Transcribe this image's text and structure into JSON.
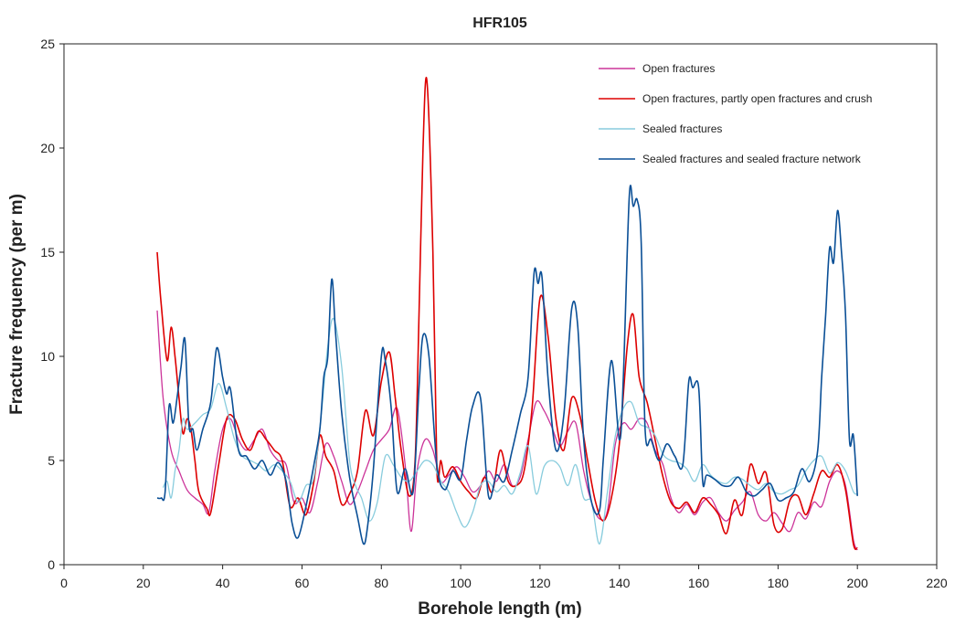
{
  "chart_data": {
    "type": "line",
    "title": "HFR105",
    "xlabel": "Borehole length (m)",
    "ylabel": "Fracture frequency (per m)",
    "xlim": [
      0,
      220
    ],
    "ylim": [
      0,
      25
    ],
    "xticks": [
      0,
      20,
      40,
      60,
      80,
      100,
      120,
      140,
      160,
      180,
      200,
      220
    ],
    "yticks": [
      0,
      5,
      10,
      15,
      20,
      25
    ],
    "grid": false,
    "legend_position": "top-right",
    "series": [
      {
        "name": "Open fractures",
        "color": "#cc3399",
        "x": [
          23.5,
          25,
          27,
          29,
          31,
          33,
          35,
          36.5,
          38,
          40,
          42,
          44,
          46,
          48,
          50,
          52,
          54,
          56,
          58,
          60,
          62,
          64,
          66,
          68,
          70,
          72,
          74,
          76,
          78,
          80,
          82,
          84,
          86,
          87.5,
          89,
          91,
          93,
          95,
          97,
          99,
          101,
          103,
          105,
          107,
          109,
          111,
          113,
          115,
          117,
          119,
          121,
          123,
          125,
          127,
          129,
          131,
          133,
          135,
          137,
          139,
          141,
          143,
          145,
          147,
          149,
          151,
          153,
          155,
          157,
          159,
          161,
          163,
          165,
          167,
          169,
          171,
          173,
          175,
          177,
          179,
          181,
          183,
          185,
          187,
          189,
          191,
          193,
          195,
          197,
          199,
          200
        ],
        "y": [
          12.2,
          8,
          5.5,
          4.5,
          3.6,
          3.2,
          2.9,
          2.5,
          4.5,
          6.5,
          7,
          6,
          5.5,
          6,
          6.5,
          5.5,
          5,
          4.8,
          3,
          3.2,
          2.5,
          4,
          5.8,
          5.2,
          4,
          2.9,
          3.5,
          4.5,
          5.5,
          6,
          6.5,
          7.5,
          4.8,
          1.6,
          4.5,
          6,
          5.5,
          4,
          4.3,
          4.7,
          4.2,
          3.5,
          3.8,
          4.5,
          4,
          4.8,
          3.8,
          4.2,
          6,
          7.8,
          7.4,
          6.6,
          5.7,
          6.4,
          6.8,
          4.5,
          3,
          2.2,
          2.6,
          5.8,
          6.8,
          6.5,
          7,
          6.8,
          5.5,
          4.8,
          3.2,
          2.5,
          2.9,
          2.4,
          3,
          3.2,
          2.5,
          2.1,
          2.6,
          3,
          3.5,
          2.4,
          2.1,
          2.5,
          2,
          1.6,
          2.5,
          2.2,
          3,
          2.8,
          4,
          4.5,
          3.8,
          1.2,
          0.7
        ]
      },
      {
        "name": "Open fractures, partly open fractures and crush",
        "color": "#dd0000",
        "x": [
          23.5,
          24.5,
          26,
          27,
          28,
          29,
          30,
          31,
          32,
          33,
          34,
          36,
          37,
          39,
          41,
          43,
          45,
          47,
          49,
          51,
          53,
          55,
          57,
          59,
          61,
          63,
          64.5,
          66,
          68,
          70,
          72,
          74,
          76,
          78,
          80,
          82,
          83.5,
          85,
          87,
          88.5,
          89.5,
          90.5,
          91.5,
          93,
          94,
          95,
          96,
          98,
          100,
          102,
          104,
          106,
          108,
          110,
          112,
          114,
          116,
          118,
          120,
          122,
          124,
          126,
          128,
          130,
          132,
          134,
          136,
          138,
          140,
          142,
          143.5,
          145,
          147,
          149,
          151,
          153,
          155,
          157,
          159,
          161,
          163,
          165,
          167,
          169,
          171,
          173,
          175,
          177,
          179,
          181,
          183,
          185,
          187,
          189,
          191,
          193,
          195,
          197,
          199,
          200
        ],
        "y": [
          15,
          12.5,
          9.8,
          11.4,
          10,
          8,
          6.3,
          7,
          6.5,
          5,
          3.5,
          2.7,
          2.5,
          4.8,
          7,
          7,
          6,
          5.5,
          6.4,
          6,
          5.5,
          5,
          2.8,
          3.2,
          2.4,
          4,
          6.2,
          5.2,
          4.5,
          2.9,
          3.4,
          4.5,
          7.4,
          6.2,
          8.8,
          10.2,
          8,
          5.5,
          3.3,
          5,
          12,
          20,
          23.2,
          15,
          4.6,
          5,
          4.2,
          4.7,
          4,
          3.5,
          3.2,
          4.2,
          3.5,
          5.5,
          4,
          3.8,
          4.5,
          7.5,
          12.8,
          11,
          7,
          5.5,
          8,
          7.2,
          5,
          3,
          2.1,
          3.2,
          5.8,
          10.5,
          12,
          9,
          7.8,
          6,
          4.2,
          3,
          2.7,
          3,
          2.5,
          3.2,
          2.9,
          2.4,
          1.5,
          3.1,
          2.4,
          4.8,
          3.9,
          4.4,
          1.9,
          1.7,
          3.1,
          3.3,
          2.4,
          3.4,
          4.5,
          4.2,
          4.8,
          3.6,
          1,
          0.8
        ]
      },
      {
        "name": "Sealed fractures",
        "color": "#88ccdd",
        "x": [
          25,
          26,
          27,
          28,
          29,
          30,
          31,
          33,
          35,
          37,
          39,
          41,
          43,
          45,
          47,
          49,
          51,
          53,
          55,
          57,
          59,
          61,
          63,
          65,
          66.5,
          68,
          70,
          72,
          73.5,
          75,
          77,
          79,
          81,
          83,
          85,
          87,
          89,
          91,
          93,
          95,
          97,
          99,
          101,
          103,
          105,
          107,
          109,
          111,
          113,
          115,
          117,
          119,
          121,
          123,
          125,
          127,
          129,
          131,
          133,
          135,
          137,
          139,
          141,
          143,
          145,
          147,
          149,
          151,
          153,
          155,
          157,
          159,
          161,
          163,
          165,
          167,
          169,
          171,
          173,
          175,
          177,
          179,
          181,
          183,
          185,
          187,
          189,
          191,
          193,
          195,
          197,
          199,
          200
        ],
        "y": [
          3.7,
          4,
          3.2,
          4.5,
          5.5,
          7,
          6.5,
          6.8,
          7.2,
          7.5,
          8.7,
          7.5,
          6,
          5.2,
          5,
          4.8,
          4.5,
          4.8,
          4.5,
          4,
          3,
          3.8,
          4.2,
          7.5,
          10.5,
          11.8,
          9.5,
          5,
          3.8,
          3.2,
          2.1,
          3,
          5.2,
          4.8,
          4.2,
          4,
          4.5,
          5,
          4.8,
          4,
          3.5,
          2.5,
          1.8,
          2.5,
          3.8,
          4,
          3.5,
          3.8,
          3.4,
          4.4,
          5.7,
          3.4,
          4.7,
          5,
          4.7,
          3.8,
          4.8,
          3.2,
          3,
          1,
          3.5,
          6.2,
          7.5,
          7.8,
          6.8,
          6.6,
          6.2,
          5.3,
          5,
          4.9,
          4.6,
          4,
          4.8,
          4.3,
          4,
          3.9,
          4.2,
          4.1,
          3.8,
          3.6,
          3.9,
          3.5,
          3.4,
          3.6,
          3.8,
          4.5,
          5,
          5.2,
          4.4,
          4.9,
          4.5,
          3.5,
          3.4
        ]
      },
      {
        "name": "Sealed fractures and sealed fracture network",
        "color": "#0a4f96",
        "x": [
          23.5,
          24.5,
          25.5,
          26.5,
          27.5,
          28.5,
          29.5,
          30.5,
          31.5,
          32.5,
          33.5,
          35,
          37,
          38.5,
          40,
          41,
          42,
          44,
          46,
          48,
          50,
          52,
          54,
          56,
          57.5,
          59,
          61,
          63,
          64.5,
          65.5,
          66.5,
          67.5,
          68.5,
          70,
          72,
          74,
          75.5,
          76.5,
          78,
          80,
          81,
          82.5,
          84,
          86,
          88,
          89.5,
          90.5,
          92,
          94,
          96,
          98,
          100,
          101.5,
          103,
          105,
          107,
          109,
          111,
          113,
          115,
          117,
          118.5,
          119.5,
          120.5,
          122,
          124,
          126,
          128,
          129.5,
          131,
          133,
          135,
          136,
          138,
          140,
          141,
          142.5,
          143.5,
          144.5,
          145.5,
          146.5,
          148,
          150,
          152,
          154,
          156,
          157.5,
          158.5,
          160,
          161,
          162,
          164,
          166,
          168,
          170,
          172,
          174,
          176,
          178,
          180,
          182,
          184,
          186,
          188,
          190,
          191,
          192,
          193,
          194,
          195,
          196,
          197,
          198,
          199,
          200
        ],
        "y": [
          3.2,
          3.2,
          3.5,
          7.6,
          6.8,
          8,
          9.5,
          10.8,
          6.7,
          6.5,
          5.5,
          6.5,
          7.8,
          10.4,
          9,
          8.2,
          8.4,
          5.5,
          5.2,
          4.6,
          5,
          4.3,
          4.9,
          4,
          2,
          1.3,
          2.8,
          4.8,
          6.5,
          9,
          10,
          13.7,
          11,
          7.3,
          4.2,
          2.3,
          1,
          1.8,
          4.6,
          10,
          9.8,
          7.5,
          3.5,
          4.6,
          3.5,
          8.5,
          11,
          10,
          4.8,
          3.6,
          4.5,
          4.1,
          6,
          7.6,
          8,
          3.3,
          4.3,
          4,
          5.5,
          7.2,
          9,
          14,
          13.5,
          13.8,
          9,
          5.5,
          7.2,
          12.3,
          11.5,
          6,
          3,
          2.6,
          5.2,
          9.8,
          6,
          9,
          17.7,
          17.2,
          17.5,
          15.5,
          6.5,
          6,
          5,
          5.8,
          5.2,
          4.8,
          8.8,
          8.5,
          8.5,
          4,
          4.3,
          4.1,
          3.8,
          3.8,
          4.2,
          3.5,
          3.3,
          3.6,
          3.9,
          3.1,
          3.2,
          3.5,
          4.6,
          4,
          5.5,
          9,
          12,
          15.2,
          14.5,
          17,
          15,
          12,
          6,
          6.2,
          3.3
        ]
      }
    ]
  }
}
